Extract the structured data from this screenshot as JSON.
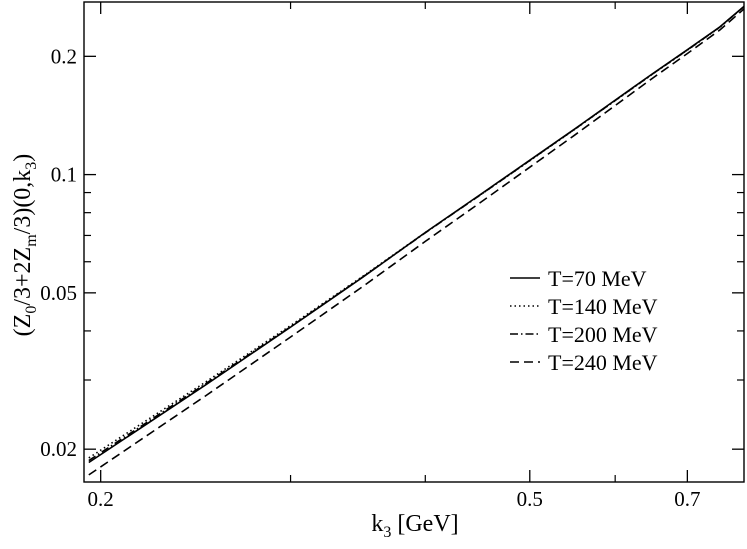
{
  "chart_data": {
    "type": "line",
    "x_scale": "log",
    "y_scale": "log",
    "xlabel": {
      "base": "k",
      "sub": "3",
      "unit": " [GeV]"
    },
    "ylabel": {
      "p1": "(Z",
      "s1": "0",
      "p2": "/3+2Z",
      "s2": "m",
      "p3": "/3)(0,k",
      "s3": "3",
      "p4": ")"
    },
    "xlim": [
      0.193,
      0.79
    ],
    "ylim": [
      0.0165,
      0.275
    ],
    "x_ticks": [
      {
        "value": 0.2,
        "label": "0.2"
      },
      {
        "value": 0.5,
        "label": "0.5"
      },
      {
        "value": 0.7,
        "label": "0.7"
      }
    ],
    "x_minor_ticks": [
      0.3,
      0.4,
      0.6
    ],
    "y_ticks": [
      {
        "value": 0.02,
        "label": "0.02"
      },
      {
        "value": 0.05,
        "label": "0.05"
      },
      {
        "value": 0.1,
        "label": "0.1"
      },
      {
        "value": 0.2,
        "label": "0.2"
      }
    ],
    "y_minor_ticks": [
      0.03,
      0.04,
      0.06,
      0.07,
      0.08,
      0.09
    ],
    "grid": false,
    "legend_position": "right",
    "series": [
      {
        "name": "T=70 MeV",
        "dash": "solid",
        "x": [
          0.195,
          0.25,
          0.3,
          0.35,
          0.4,
          0.45,
          0.5,
          0.55,
          0.6,
          0.65,
          0.7,
          0.75,
          0.79
        ],
        "y": [
          0.0185,
          0.0291,
          0.0409,
          0.0548,
          0.0712,
          0.089,
          0.1088,
          0.1305,
          0.1547,
          0.1807,
          0.2079,
          0.2375,
          0.268
        ]
      },
      {
        "name": "T=140 MeV",
        "dash": "dotted",
        "x": [
          0.195,
          0.25,
          0.3,
          0.35,
          0.4,
          0.45,
          0.5,
          0.55,
          0.6,
          0.65,
          0.7,
          0.75,
          0.79
        ],
        "y": [
          0.019,
          0.0296,
          0.0413,
          0.0551,
          0.0712,
          0.0888,
          0.1085,
          0.1302,
          0.1543,
          0.1803,
          0.2074,
          0.237,
          0.2675
        ]
      },
      {
        "name": "T=200 MeV",
        "dash": "dashdot",
        "x": [
          0.195,
          0.25,
          0.3,
          0.35,
          0.4,
          0.45,
          0.5,
          0.55,
          0.6,
          0.65,
          0.7,
          0.75,
          0.79
        ],
        "y": [
          0.0187,
          0.0293,
          0.041,
          0.0549,
          0.0711,
          0.0888,
          0.1086,
          0.1303,
          0.1544,
          0.1804,
          0.2076,
          0.2372,
          0.2677
        ]
      },
      {
        "name": "T=240 MeV",
        "dash": "dashed",
        "x": [
          0.195,
          0.25,
          0.3,
          0.35,
          0.4,
          0.45,
          0.5,
          0.55,
          0.6,
          0.65,
          0.7,
          0.75,
          0.79
        ],
        "y": [
          0.0172,
          0.0273,
          0.0386,
          0.0519,
          0.0676,
          0.0849,
          0.1044,
          0.1259,
          0.1499,
          0.176,
          0.2033,
          0.2332,
          0.264
        ]
      }
    ]
  }
}
